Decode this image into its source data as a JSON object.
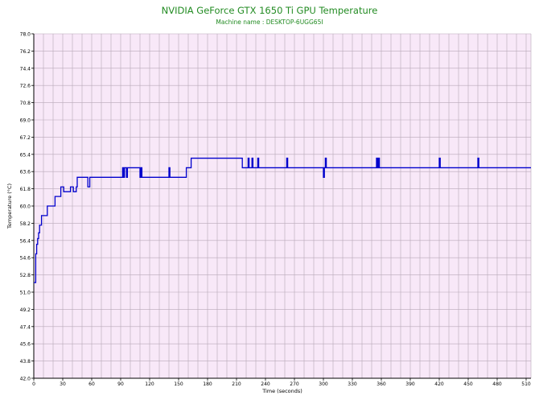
{
  "chart_data": {
    "type": "line",
    "title": "NVIDIA GeForce GTX 1650 Ti GPU Temperature",
    "subtitle": "Machine name : DESKTOP-6UGG65I",
    "xlabel": "Time (seconds)",
    "ylabel": "Temperature (°C)",
    "xlim": [
      0,
      515
    ],
    "ylim": [
      42.0,
      78.0
    ],
    "grid": true,
    "colors": {
      "title": "#228b22",
      "plot_bg": "#f8e8f8",
      "grid": "#b8a8b8",
      "line": "#0000cc",
      "axis": "#000000"
    },
    "x_ticks": [
      "0",
      "30",
      "60",
      "90",
      "120",
      "150",
      "180",
      "210",
      "240",
      "270",
      "300",
      "330",
      "360",
      "390",
      "420",
      "450",
      "480",
      "510"
    ],
    "y_ticks": [
      "42.0",
      "43.8",
      "45.6",
      "47.4",
      "49.2",
      "51.0",
      "52.8",
      "54.6",
      "56.4",
      "58.2",
      "60.0",
      "61.8",
      "63.6",
      "65.4",
      "67.2",
      "69.0",
      "70.8",
      "72.6",
      "74.4",
      "76.2",
      "78.0"
    ],
    "series": [
      {
        "x": [
          0,
          2,
          2,
          3,
          3,
          4,
          4,
          5,
          5,
          6,
          6,
          8,
          8,
          11,
          11,
          14,
          14,
          22,
          22,
          26,
          26,
          28,
          28,
          31,
          31,
          38,
          38,
          41,
          41,
          44,
          44,
          45,
          45,
          56,
          56,
          58,
          58,
          60,
          60,
          92,
          92,
          93,
          93,
          94,
          94,
          96,
          96,
          97,
          97,
          110,
          110,
          111,
          111,
          112,
          112,
          140,
          140,
          141,
          141,
          142,
          142,
          158,
          158,
          160,
          160,
          163,
          163,
          216,
          216,
          217,
          217,
          222,
          222,
          223,
          223,
          226,
          226,
          227,
          227,
          232,
          232,
          233,
          233,
          262,
          262,
          263,
          263,
          300,
          300,
          301,
          301,
          302,
          302,
          303,
          303,
          355,
          355,
          356,
          356,
          357,
          357,
          358,
          358,
          420,
          420,
          421,
          421,
          460,
          460,
          461,
          461,
          515
        ],
        "y": [
          52.0,
          52.0,
          55.0,
          55.0,
          56.0,
          56.0,
          56.6,
          56.6,
          57.2,
          57.2,
          58.0,
          58.0,
          59.0,
          59.0,
          59.0,
          59.0,
          60.0,
          60.0,
          61.0,
          61.0,
          61.0,
          61.0,
          62.0,
          62.0,
          61.5,
          61.5,
          62.0,
          62.0,
          61.5,
          61.5,
          62.0,
          62.0,
          63.0,
          63.0,
          62.0,
          62.0,
          63.0,
          63.0,
          63.0,
          63.0,
          64.0,
          64.0,
          63.0,
          63.0,
          64.0,
          64.0,
          63.0,
          63.0,
          64.0,
          64.0,
          63.0,
          63.0,
          64.0,
          64.0,
          63.0,
          63.0,
          64.0,
          64.0,
          63.0,
          63.0,
          63.0,
          63.0,
          64.0,
          64.0,
          64.0,
          64.0,
          65.0,
          65.0,
          64.0,
          64.0,
          64.0,
          64.0,
          65.0,
          65.0,
          64.0,
          64.0,
          65.0,
          65.0,
          64.0,
          64.0,
          65.0,
          65.0,
          64.0,
          64.0,
          65.0,
          65.0,
          64.0,
          64.0,
          63.0,
          63.0,
          64.0,
          64.0,
          65.0,
          65.0,
          64.0,
          64.0,
          65.0,
          65.0,
          64.0,
          64.0,
          65.0,
          65.0,
          64.0,
          64.0,
          65.0,
          65.0,
          64.0,
          64.0,
          65.0,
          65.0,
          64.0,
          64.0
        ]
      }
    ]
  }
}
